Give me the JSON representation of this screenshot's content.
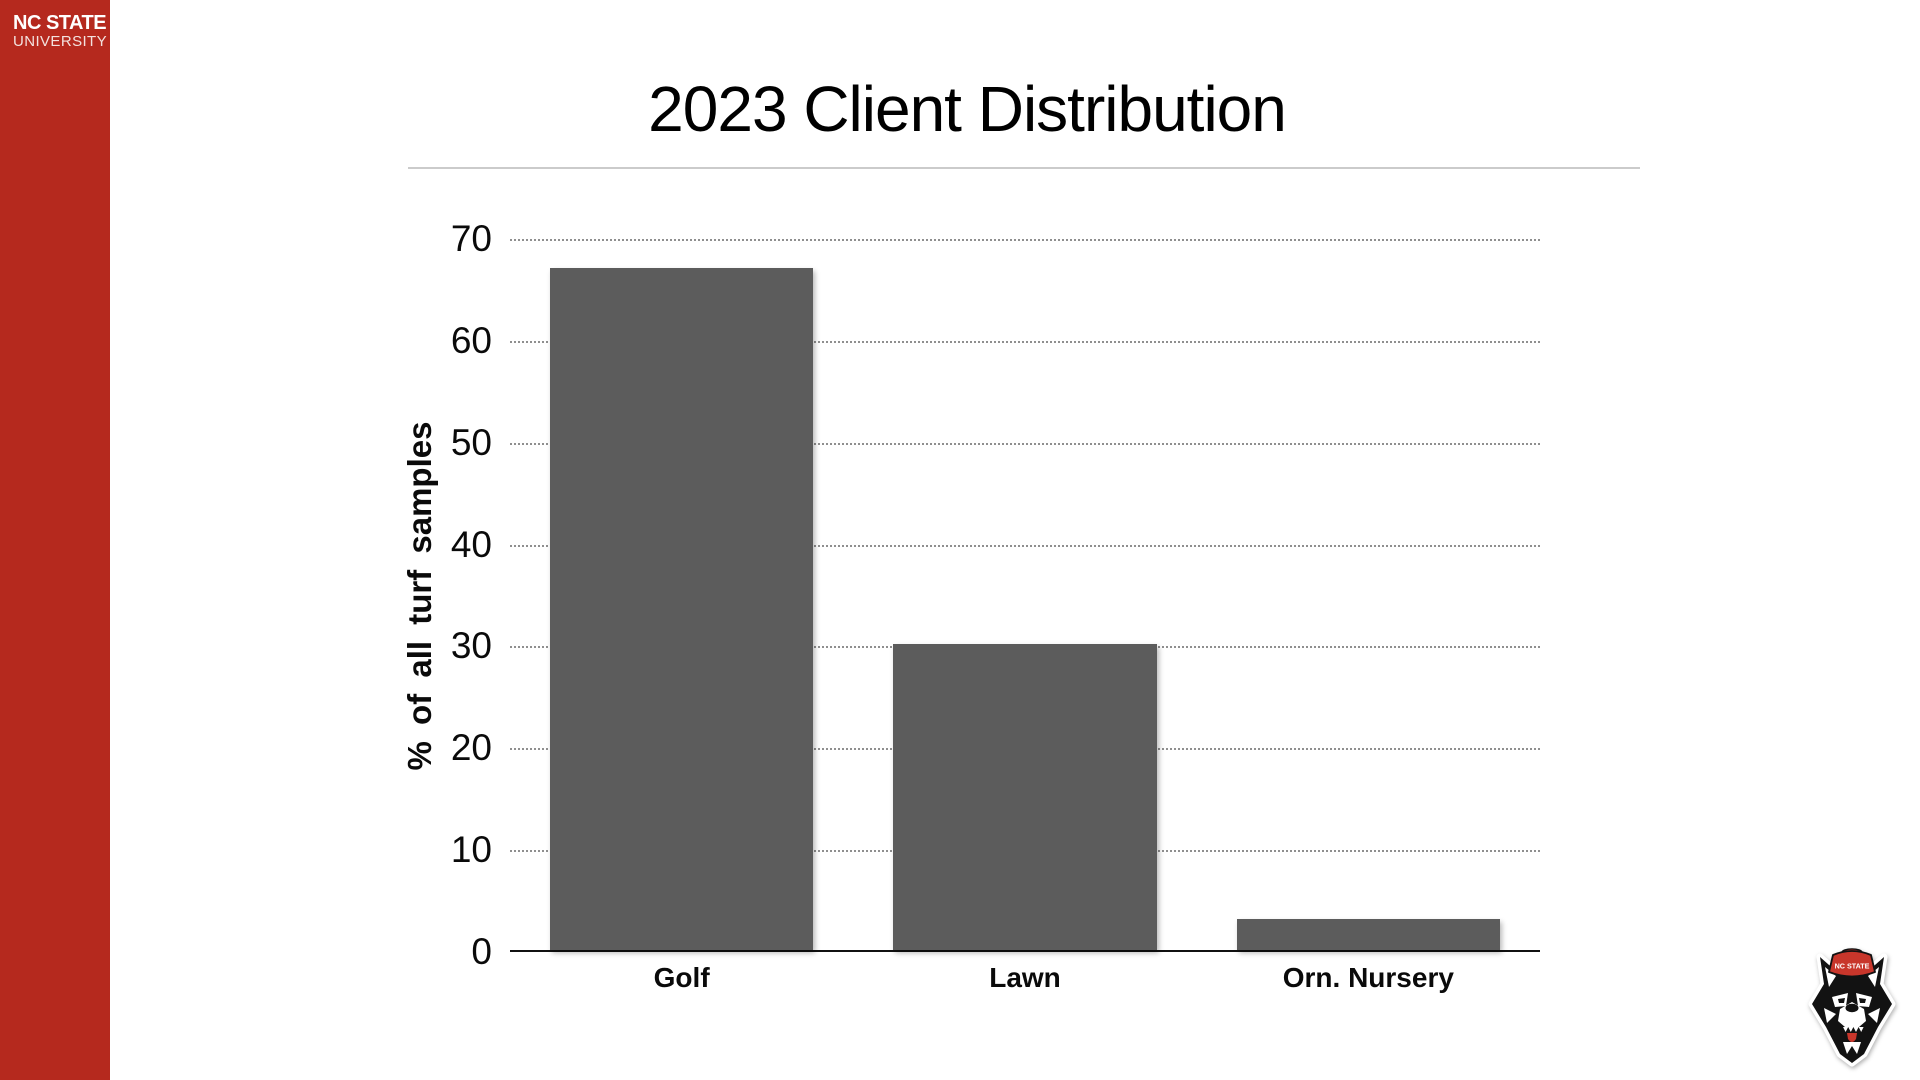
{
  "sidebar": {
    "brand_line1": "NC STATE",
    "brand_line2": "UNIVERSITY",
    "background_color": "#B5291E"
  },
  "header": {
    "title": "2023 Client Distribution"
  },
  "chart_data": {
    "type": "bar",
    "title": "2023 Client Distribution",
    "categories": [
      "Golf",
      "Lawn",
      "Orn. Nursery"
    ],
    "values": [
      67,
      30,
      3
    ],
    "xlabel": "",
    "ylabel": "% of all turf samples",
    "ylim": [
      0,
      70
    ],
    "yticks": [
      0,
      10,
      20,
      30,
      40,
      50,
      60,
      70
    ],
    "grid": "horizontal-dotted",
    "legend_position": "none",
    "bar_color": "#5C5C5C"
  },
  "footer": {
    "mascot_icon": "nc-state-wolfpack-head-icon",
    "hat_text": "NC STATE"
  }
}
